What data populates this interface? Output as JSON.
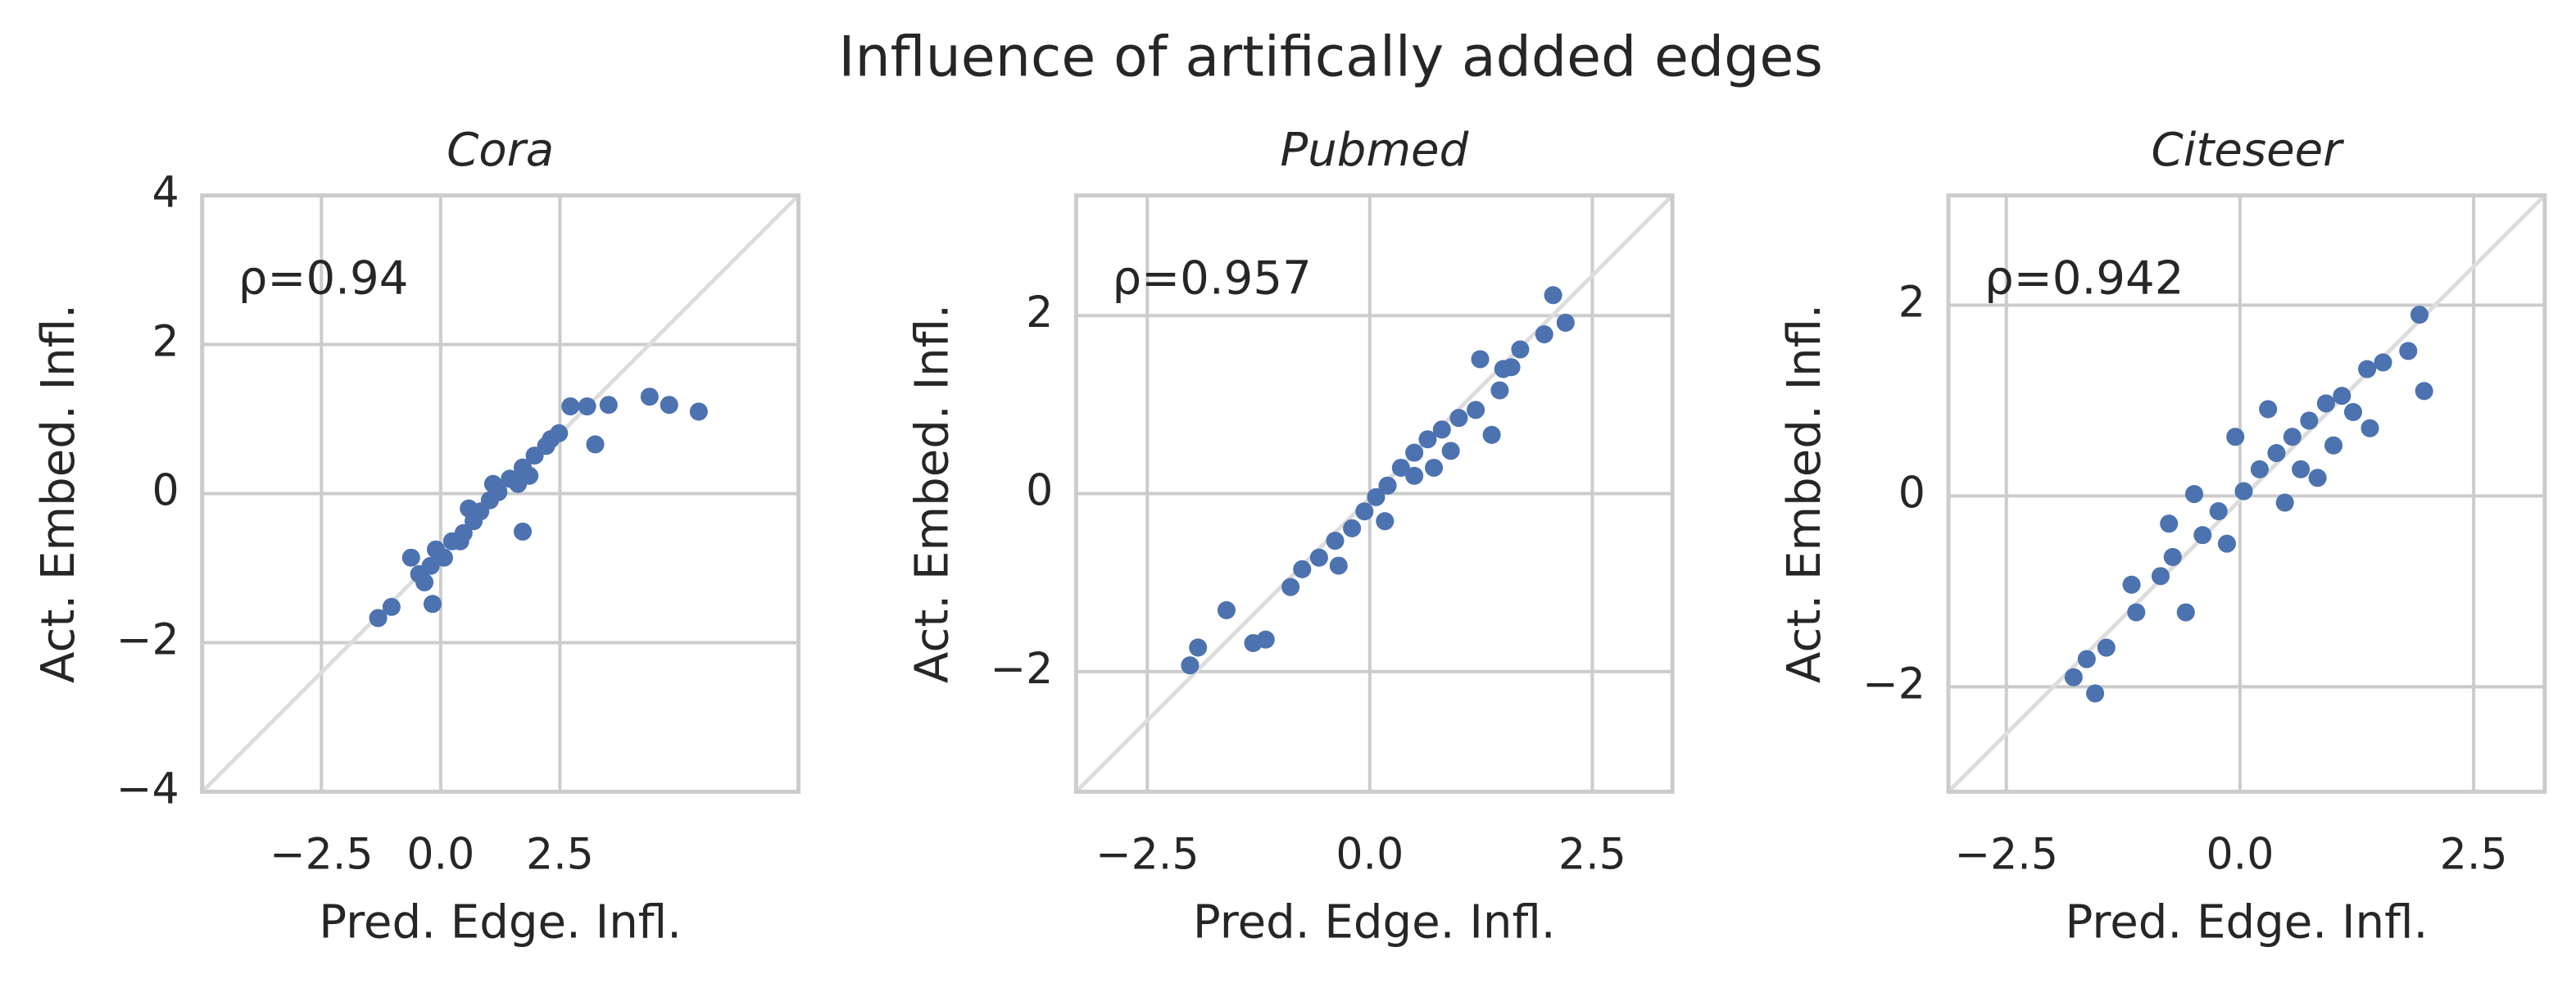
{
  "title": "Influence of artifically added edges",
  "chart_data": [
    {
      "type": "scatter",
      "title": "Cora",
      "x_label": "Pred. Edge. Infl.",
      "y_label": "Act. Embed. Infl.",
      "annotation": "ρ=0.94",
      "color": "#4c72b0",
      "grid": true,
      "xlim": [
        -5,
        7.5
      ],
      "ylim": [
        -4,
        4
      ],
      "xticks": [
        {
          "value": -2.5,
          "label": "−2.5"
        },
        {
          "value": 0,
          "label": "0.0"
        },
        {
          "value": 2.5,
          "label": "2.5"
        }
      ],
      "yticks": [
        {
          "value": -4,
          "label": "−4"
        },
        {
          "value": -2,
          "label": "−2"
        },
        0,
        2,
        4
      ],
      "x": [
        -1.31,
        -1.03,
        -0.17,
        -0.45,
        -0.21,
        0.07,
        0.24,
        0.48,
        0.69,
        0.83,
        1.03,
        1.21,
        1.45,
        1.72,
        1.97,
        2.21,
        2.48,
        2.72,
        3.07,
        3.52,
        3.24,
        1.72,
        4.38,
        4.79,
        5.41,
        0.41,
        -0.1,
        0.59,
        1.1,
        1.62,
        1.86,
        2.31,
        -0.62,
        -0.34
      ],
      "y": [
        -1.67,
        -1.52,
        -1.48,
        -1.08,
        -0.97,
        -0.86,
        -0.64,
        -0.53,
        -0.37,
        -0.24,
        -0.09,
        0.02,
        0.2,
        0.35,
        0.51,
        0.64,
        0.81,
        1.17,
        1.17,
        1.19,
        0.66,
        -0.51,
        1.3,
        1.19,
        1.1,
        -0.64,
        -0.75,
        -0.2,
        0.13,
        0.13,
        0.24,
        0.73,
        -0.86,
        -1.19
      ]
    },
    {
      "type": "scatter",
      "title": "Pubmed",
      "x_label": "Pred. Edge. Infl.",
      "y_label": "Act. Embed. Infl.",
      "annotation": "ρ=0.957",
      "color": "#4c72b0",
      "grid": true,
      "xlim": [
        -3.3,
        3.4
      ],
      "ylim": [
        -3.35,
        3.35
      ],
      "xticks": [
        {
          "value": -2.5,
          "label": "−2.5"
        },
        {
          "value": 0,
          "label": "0.0"
        },
        {
          "value": 2.5,
          "label": "2.5"
        }
      ],
      "yticks": [
        {
          "value": -2,
          "label": "−2"
        },
        0,
        2
      ],
      "x": [
        -2.02,
        -1.93,
        -1.61,
        -1.31,
        -1.17,
        -0.89,
        -0.76,
        -0.57,
        -0.39,
        -0.2,
        -0.06,
        0.07,
        0.2,
        0.35,
        0.5,
        0.65,
        0.81,
        1.0,
        1.19,
        1.37,
        1.24,
        1.46,
        1.5,
        1.59,
        1.69,
        1.96,
        2.06,
        2.2,
        0.72,
        0.17,
        -0.35,
        0.5,
        0.91
      ],
      "y": [
        -1.93,
        -1.73,
        -1.31,
        -1.68,
        -1.64,
        -1.05,
        -0.85,
        -0.72,
        -0.53,
        -0.39,
        -0.2,
        -0.04,
        0.09,
        0.29,
        0.46,
        0.61,
        0.72,
        0.85,
        0.94,
        0.66,
        1.51,
        1.16,
        1.4,
        1.42,
        1.62,
        1.79,
        2.23,
        1.92,
        0.29,
        -0.31,
        -0.81,
        0.2,
        0.48
      ]
    },
    {
      "type": "scatter",
      "title": "Citeseer",
      "x_label": "Pred. Edge. Infl.",
      "y_label": "Act. Embed. Infl.",
      "annotation": "ρ=0.942",
      "color": "#4c72b0",
      "grid": true,
      "xlim": [
        -3.12,
        3.26
      ],
      "ylim": [
        -3.1,
        3.15
      ],
      "xticks": [
        {
          "value": -2.5,
          "label": "−2.5"
        },
        {
          "value": 0,
          "label": "0.0"
        },
        {
          "value": 2.5,
          "label": "2.5"
        }
      ],
      "yticks": [
        {
          "value": -2,
          "label": "−2"
        },
        0,
        2
      ],
      "x": [
        -1.78,
        -1.55,
        -1.64,
        -1.43,
        -1.11,
        -1.16,
        -0.85,
        -0.58,
        -0.72,
        -0.4,
        -0.49,
        -0.23,
        0.04,
        -0.05,
        0.21,
        0.39,
        0.56,
        0.74,
        0.3,
        0.92,
        1.09,
        1.21,
        1.36,
        1.53,
        1.8,
        1.92,
        1.97,
        1.39,
        0.83,
        0.48,
        -0.14,
        -0.76,
        0.65,
        1.0
      ],
      "y": [
        -1.9,
        -2.07,
        -1.71,
        -1.59,
        -1.22,
        -0.93,
        -0.84,
        -1.22,
        -0.64,
        -0.41,
        0.02,
        -0.16,
        0.05,
        0.62,
        0.28,
        0.45,
        0.62,
        0.79,
        0.91,
        0.97,
        1.05,
        0.88,
        1.33,
        1.4,
        1.52,
        1.9,
        1.1,
        0.71,
        0.19,
        -0.07,
        -0.5,
        -0.29,
        0.28,
        0.53
      ]
    }
  ]
}
